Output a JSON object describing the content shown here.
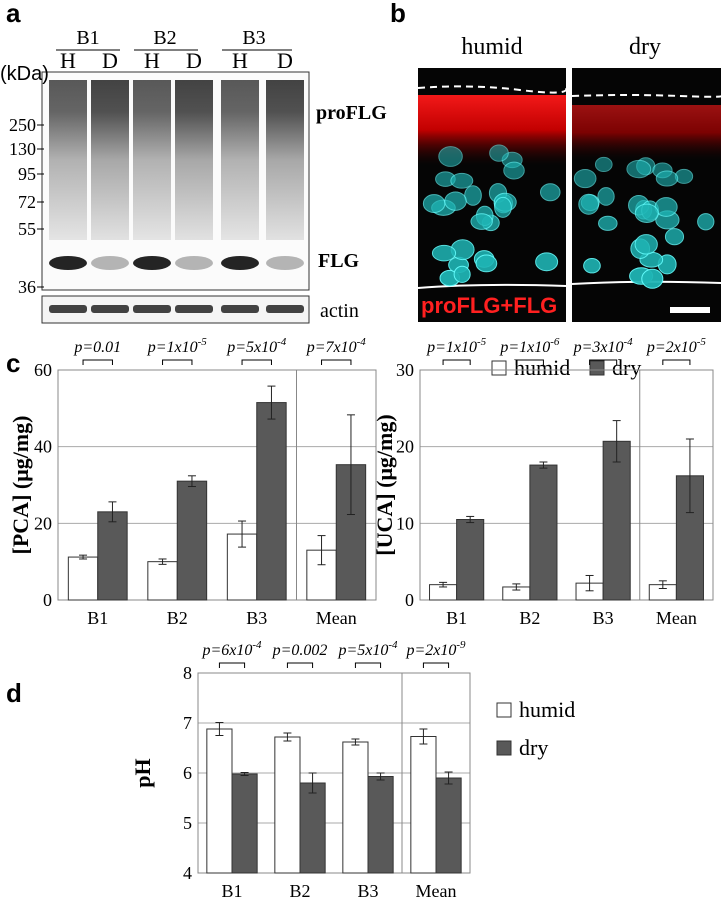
{
  "panel_labels": [
    "a",
    "b",
    "c",
    "d"
  ],
  "blot": {
    "groups": [
      "B1",
      "B2",
      "B3"
    ],
    "lanes": [
      "H",
      "D",
      "H",
      "D",
      "H",
      "D"
    ],
    "unit": "(kDa)",
    "markers": [
      250,
      130,
      95,
      72,
      55,
      36
    ],
    "band_labels": [
      "proFLG",
      "FLG"
    ],
    "loading_control": "actin"
  },
  "micrograph": {
    "conditions": [
      "humid",
      "dry"
    ],
    "stain": "proFLG+FLG"
  },
  "chart_data": [
    {
      "type": "bar",
      "y_label": "[PCA] (μg/mg)",
      "categories": [
        "B1",
        "B2",
        "B3",
        "Mean"
      ],
      "series": [
        {
          "name": "humid",
          "color": "#ffffff",
          "values": [
            11.2,
            10,
            17.2,
            13
          ],
          "errors": [
            0.5,
            0.7,
            3.4,
            3.8
          ]
        },
        {
          "name": "dry",
          "color": "#595959",
          "values": [
            23,
            31,
            51.5,
            35.3
          ],
          "errors": [
            2.6,
            1.4,
            4.3,
            13
          ]
        }
      ],
      "ylim": [
        0,
        60
      ],
      "yticks": [
        0,
        20,
        40,
        60
      ],
      "grid": true,
      "annotations": [
        {
          "text": "p=0.01"
        },
        {
          "text": "p=1x10",
          "sup": "-5"
        },
        {
          "text": "p=5x10",
          "sup": "-4"
        },
        {
          "text": "p=7x10",
          "sup": "-4"
        }
      ]
    },
    {
      "type": "bar",
      "y_label": "[UCA] (μg/mg)",
      "categories": [
        "B1",
        "B2",
        "B3",
        "Mean"
      ],
      "series": [
        {
          "color": "#ffffff",
          "values": [
            2,
            1.7,
            2.2,
            2
          ],
          "errors": [
            0.3,
            0.4,
            1,
            0.5
          ]
        },
        {
          "color": "#595959",
          "values": [
            10.5,
            17.6,
            20.7,
            16.2
          ],
          "errors": [
            0.4,
            0.4,
            2.7,
            4.8
          ]
        }
      ],
      "ylim": [
        0,
        30
      ],
      "yticks": [
        0,
        10,
        20,
        30
      ],
      "grid": true,
      "annotations": [
        {
          "text": "p=1x10",
          "sup": "-5"
        },
        {
          "text": "p=1x10",
          "sup": "-6"
        },
        {
          "text": "p=3x10",
          "sup": "-4"
        },
        {
          "text": "p=2x10",
          "sup": "-5"
        }
      ]
    },
    {
      "type": "bar",
      "y_label": "pH",
      "categories": [
        "B1",
        "B2",
        "B3",
        "Mean"
      ],
      "series": [
        {
          "name": "humid",
          "color": "#ffffff",
          "values": [
            6.88,
            6.72,
            6.62,
            6.73
          ],
          "errors": [
            0.13,
            0.08,
            0.06,
            0.15
          ]
        },
        {
          "name": "dry",
          "color": "#595959",
          "values": [
            5.98,
            5.8,
            5.93,
            5.9
          ],
          "errors": [
            0.03,
            0.2,
            0.07,
            0.12
          ]
        }
      ],
      "ylim": [
        4,
        8
      ],
      "yticks": [
        4,
        5,
        6,
        7,
        8
      ],
      "grid": true,
      "annotations": [
        {
          "text": "p=6x10",
          "sup": "-4"
        },
        {
          "text": "p=0.002"
        },
        {
          "text": "p=5x10",
          "sup": "-4"
        },
        {
          "text": "p=2x10",
          "sup": "-9"
        }
      ]
    }
  ]
}
